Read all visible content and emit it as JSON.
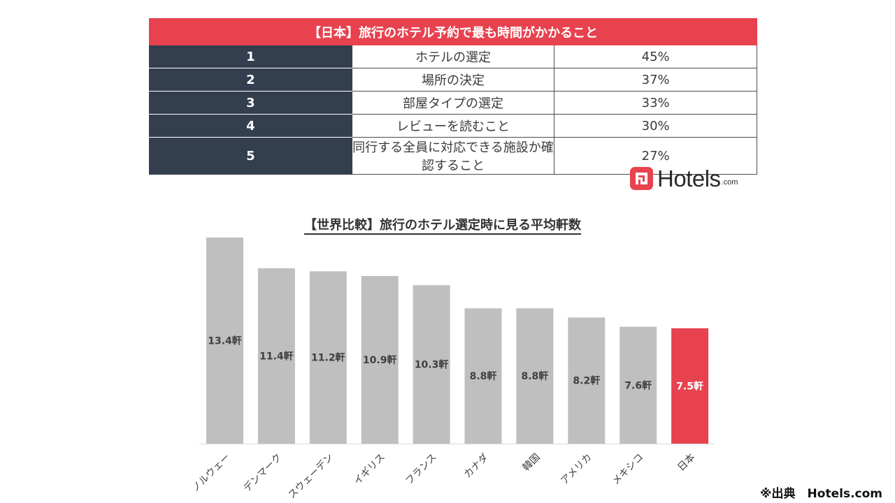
{
  "table": {
    "title": "【日本】旅行のホテル予約で最も時間がかかること",
    "rows": [
      {
        "rank": "1",
        "item": "ホテルの選定",
        "percent": "45%"
      },
      {
        "rank": "2",
        "item": "場所の決定",
        "percent": "37%"
      },
      {
        "rank": "3",
        "item": "部屋タイプの選定",
        "percent": "33%"
      },
      {
        "rank": "4",
        "item": "レビューを読むこと",
        "percent": "30%"
      },
      {
        "rank": "5",
        "item": "同行する全員に対応できる施設か確認すること",
        "percent": "27%"
      }
    ]
  },
  "logo": {
    "name": "Hotels",
    "domain": ".com",
    "icon": "hotels-logo-icon"
  },
  "chart_data": {
    "type": "bar",
    "title": "【世界比較】旅行のホテル選定時に見る平均軒数",
    "categories": [
      "ノルウェー",
      "デンマーク",
      "スウェーデン",
      "イギリス",
      "フランス",
      "カナダ",
      "韓国",
      "アメリカ",
      "メキシコ",
      "日本"
    ],
    "values": [
      13.4,
      11.4,
      11.2,
      10.9,
      10.3,
      8.8,
      8.8,
      8.2,
      7.6,
      7.5
    ],
    "data_labels": [
      "13.4軒",
      "11.4軒",
      "11.2軒",
      "10.9軒",
      "10.3軒",
      "8.8軒",
      "8.8軒",
      "8.2軒",
      "7.6軒",
      "7.5軒"
    ],
    "unit": "軒",
    "highlight_category": "日本",
    "xlabel": "",
    "ylabel": "",
    "ylim": [
      0,
      13.4
    ],
    "grid": false,
    "colors": {
      "default": "#bfbfbf",
      "highlight": "#e8424f",
      "label_default": "#404040",
      "label_highlight": "#ffffff"
    }
  },
  "source": "※出典　Hotels.com"
}
